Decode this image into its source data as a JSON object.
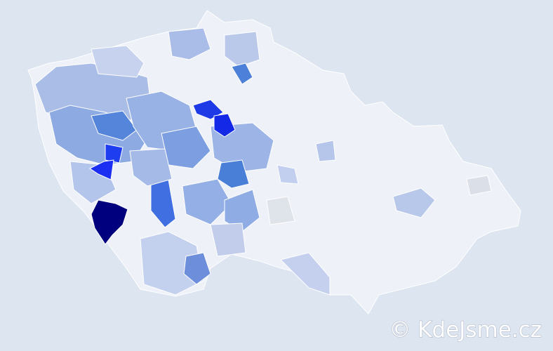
{
  "watermark": "© KdeJsme.cz"
}
